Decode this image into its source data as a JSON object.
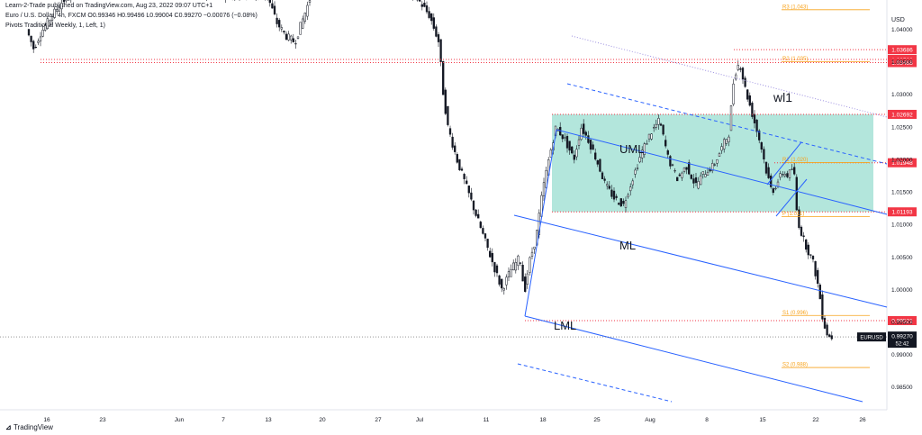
{
  "header": {
    "published": "Learn-2-Trade published on TradingView.com, Aug 23, 2022 09:07 UTC+1",
    "symbol_line": "Euro / U.S. Dollar, 4h, FXCM  O0.99346 H0.99496 L0.99004 C0.99270 −0.00076 (−0.08%)",
    "pivots_line": "Pivots Traditional Weekly, 1, Left, 1)"
  },
  "footer": {
    "brand": "TradingView"
  },
  "colors": {
    "candle": "#131722",
    "channel": "#2962ff",
    "zone_fill": "#93dccd",
    "resistance": "#f23645",
    "pivot": "#f7a21b"
  },
  "chart_data": {
    "type": "candlestick",
    "currency": "USD",
    "ylim": [
      0.9815,
      1.0445
    ],
    "y_ticks": [
      "1.04000",
      "1.03500",
      "1.03000",
      "1.02500",
      "1.02000",
      "1.01500",
      "1.01000",
      "1.00500",
      "1.00000",
      "0.99500",
      "0.99000",
      "0.98500"
    ],
    "x_ticks": [
      "16",
      "23",
      "Jun",
      "7",
      "13",
      "20",
      "27",
      "Jul",
      "11",
      "18",
      "25",
      "Aug",
      "8",
      "15",
      "22",
      "26"
    ],
    "price_levels": [
      {
        "label": "1.03686",
        "value": 1.03686
      },
      {
        "label": "1.03536",
        "value": 1.03536
      },
      {
        "label": "1.03488",
        "value": 1.03488
      },
      {
        "label": "1.02692",
        "value": 1.02692
      },
      {
        "label": "1.01948",
        "value": 1.01948
      },
      {
        "label": "1.01193",
        "value": 1.01193
      },
      {
        "label": "0.99521",
        "value": 0.99521
      }
    ],
    "last_price": {
      "symbol": "EURUSD",
      "value": "0.99270",
      "countdown": "52:42",
      "price": 0.9927
    },
    "pivots": [
      {
        "label": "R3 (1.043)",
        "value": 1.043
      },
      {
        "label": "R2 (1.035)",
        "value": 1.035
      },
      {
        "label": "R1 (1.020)",
        "value": 1.0195
      },
      {
        "label": "P (1.011)",
        "value": 1.0112
      },
      {
        "label": "S1 (0.996)",
        "value": 0.996
      },
      {
        "label": "S2 (0.988)",
        "value": 0.988
      }
    ],
    "annotations": [
      "UML",
      "ML",
      "LML",
      "wl1"
    ],
    "zone": {
      "top": 1.02692,
      "bottom": 1.01193
    }
  }
}
